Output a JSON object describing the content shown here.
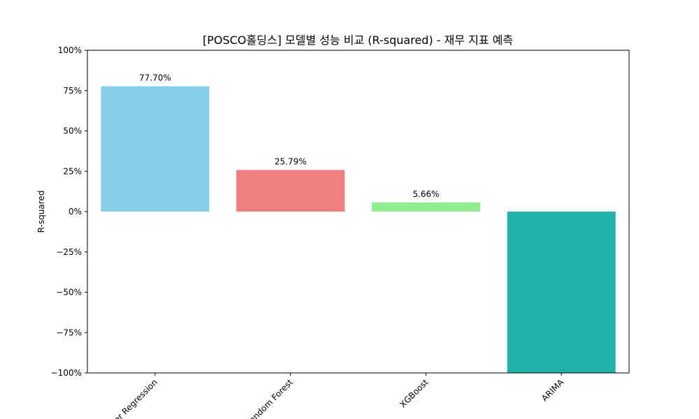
{
  "chart_data": {
    "type": "bar",
    "title": "[POSCO홀딩스] 모델별 성능 비교 (R-squared) - 재무 지표 예측",
    "xlabel": "",
    "ylabel": "R-squared",
    "ylim": [
      -1.0,
      1.0
    ],
    "yticks": [
      {
        "value": 1.0,
        "label": "100%"
      },
      {
        "value": 0.75,
        "label": "75%"
      },
      {
        "value": 0.5,
        "label": "50%"
      },
      {
        "value": 0.25,
        "label": "25%"
      },
      {
        "value": 0.0,
        "label": "0%"
      },
      {
        "value": -0.25,
        "label": "−25%"
      },
      {
        "value": -0.5,
        "label": "−50%"
      },
      {
        "value": -0.75,
        "label": "−75%"
      },
      {
        "value": -1.0,
        "label": "−100%"
      }
    ],
    "categories": [
      "Linear Regression",
      "Random Forest",
      "XGBoost",
      "ARIMA"
    ],
    "values": [
      0.777,
      0.2579,
      0.0566,
      -1.0
    ],
    "data_labels": [
      "77.70%",
      "25.79%",
      "5.66%",
      ""
    ],
    "colors": [
      "#87ceeb",
      "#f08080",
      "#90ee90",
      "#20b2aa"
    ],
    "grid": false,
    "legend": "none"
  }
}
